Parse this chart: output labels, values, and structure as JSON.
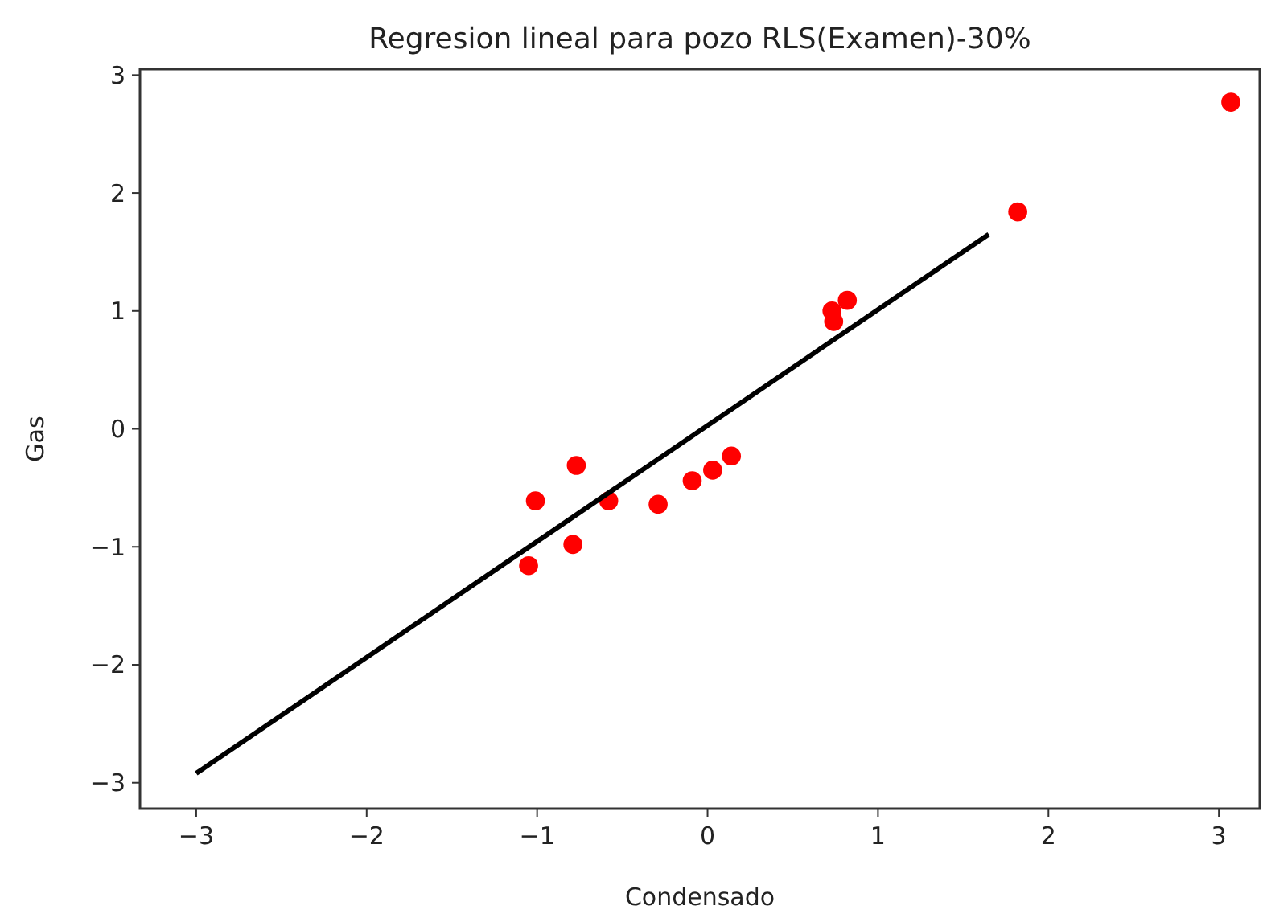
{
  "chart_data": {
    "type": "scatter",
    "title": "Regresion lineal para pozo RLS(Examen)-30%",
    "xlabel": "Condensado",
    "ylabel": "Gas",
    "xlim": [
      -3.33,
      3.24
    ],
    "ylim": [
      -3.22,
      3.05
    ],
    "xticks": [
      -3,
      -2,
      -1,
      0,
      1,
      2,
      3
    ],
    "yticks": [
      -3,
      -2,
      -1,
      0,
      1,
      2,
      3
    ],
    "grid": false,
    "series": [
      {
        "color": "#ff0000",
        "marker": "circle",
        "x": [
          3.07,
          1.82,
          0.73,
          0.82,
          0.74,
          -1.01,
          -0.77,
          -0.79,
          -1.05,
          -0.58,
          -0.29,
          -0.09,
          0.03,
          0.14
        ],
        "values": [
          2.77,
          1.84,
          1.0,
          1.09,
          0.91,
          -0.61,
          -0.31,
          -0.98,
          -1.16,
          -0.61,
          -0.64,
          -0.44,
          -0.35,
          -0.23
        ]
      },
      {
        "type": "line",
        "color": "#000000",
        "marker": "none",
        "x": [
          -3,
          1.65
        ],
        "values": [
          -2.92,
          1.65
        ]
      }
    ]
  }
}
